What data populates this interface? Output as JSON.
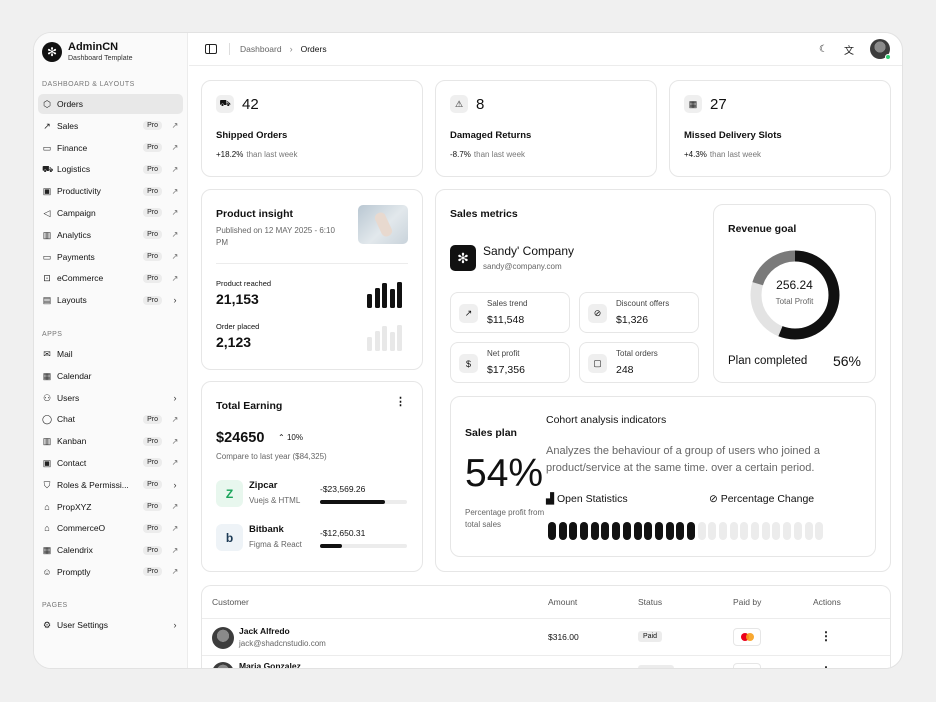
{
  "brand": {
    "name": "AdminCN",
    "subtitle": "Dashboard Template"
  },
  "sidebar": {
    "section1": "DASHBOARD & LAYOUTS",
    "items1": [
      {
        "label": "Orders",
        "icon": "box-icon",
        "glyph": "⬡",
        "pro": "",
        "trail": "",
        "active": true
      },
      {
        "label": "Sales",
        "icon": "trending-up-icon",
        "glyph": "↗",
        "pro": "Pro",
        "trail": "↗"
      },
      {
        "label": "Finance",
        "icon": "wallet-icon",
        "glyph": "▭",
        "pro": "Pro",
        "trail": "↗"
      },
      {
        "label": "Logistics",
        "icon": "truck-icon",
        "glyph": "⛟",
        "pro": "Pro",
        "trail": "↗"
      },
      {
        "label": "Productivity",
        "icon": "briefcase-icon",
        "glyph": "▣",
        "pro": "Pro",
        "trail": "↗"
      },
      {
        "label": "Campaign",
        "icon": "megaphone-icon",
        "glyph": "◁",
        "pro": "Pro",
        "trail": "↗"
      },
      {
        "label": "Analytics",
        "icon": "chart-icon",
        "glyph": "▥",
        "pro": "Pro",
        "trail": "↗"
      },
      {
        "label": "Payments",
        "icon": "credit-card-icon",
        "glyph": "▭",
        "pro": "Pro",
        "trail": "↗"
      },
      {
        "label": "eCommerce",
        "icon": "cart-icon",
        "glyph": "⊡",
        "pro": "Pro",
        "trail": "↗"
      },
      {
        "label": "Layouts",
        "icon": "layout-icon",
        "glyph": "▤",
        "pro": "Pro",
        "trail": "›"
      }
    ],
    "section2": "APPS",
    "items2": [
      {
        "label": "Mail",
        "icon": "mail-icon",
        "glyph": "✉",
        "pro": "",
        "trail": ""
      },
      {
        "label": "Calendar",
        "icon": "calendar-icon",
        "glyph": "▦",
        "pro": "",
        "trail": ""
      },
      {
        "label": "Users",
        "icon": "users-icon",
        "glyph": "⚇",
        "pro": "",
        "trail": "›"
      },
      {
        "label": "Chat",
        "icon": "chat-icon",
        "glyph": "◯",
        "pro": "Pro",
        "trail": "↗"
      },
      {
        "label": "Kanban",
        "icon": "kanban-icon",
        "glyph": "▥",
        "pro": "Pro",
        "trail": "↗"
      },
      {
        "label": "Contact",
        "icon": "contact-icon",
        "glyph": "▣",
        "pro": "Pro",
        "trail": "↗"
      },
      {
        "label": "Roles & Permissi...",
        "icon": "shield-icon",
        "glyph": "⛉",
        "pro": "Pro",
        "trail": "›"
      },
      {
        "label": "PropXYZ",
        "icon": "building-icon",
        "glyph": "⌂",
        "pro": "Pro",
        "trail": "↗"
      },
      {
        "label": "CommerceO",
        "icon": "store-icon",
        "glyph": "⌂",
        "pro": "Pro",
        "trail": "↗"
      },
      {
        "label": "Calendrix",
        "icon": "calendar-icon",
        "glyph": "▦",
        "pro": "Pro",
        "trail": "↗"
      },
      {
        "label": "Promptly",
        "icon": "bot-icon",
        "glyph": "☺",
        "pro": "Pro",
        "trail": "↗"
      }
    ],
    "section3": "PAGES",
    "items3": [
      {
        "label": "User Settings",
        "icon": "user-settings-icon",
        "glyph": "⚙",
        "pro": "",
        "trail": "›"
      }
    ]
  },
  "breadcrumb": {
    "parent": "Dashboard",
    "current": "Orders"
  },
  "stats": [
    {
      "icon": "truck-icon",
      "glyph": "⛟",
      "value": "42",
      "title": "Shipped Orders",
      "change": "+18.2%",
      "note": "than last week"
    },
    {
      "icon": "alert-icon",
      "glyph": "⚠",
      "value": "8",
      "title": "Damaged Returns",
      "change": "-8.7%",
      "note": "than last week"
    },
    {
      "icon": "calendar-icon",
      "glyph": "▦",
      "value": "27",
      "title": "Missed Delivery Slots",
      "change": "+4.3%",
      "note": "than last week"
    }
  ],
  "insight": {
    "title": "Product insight",
    "published": "Published on 12 MAY 2025 - 6:10 PM",
    "reached_label": "Product reached",
    "reached_value": "21,153",
    "placed_label": "Order placed",
    "placed_value": "2,123"
  },
  "earning": {
    "title": "Total Earning",
    "amount": "$24650",
    "change": "10%",
    "compare": "Compare to last year ($84,325)",
    "rows": [
      {
        "name": "Zipcar",
        "sub": "Vuejs & HTML",
        "amount": "-$23,569.26",
        "progress": 0.75
      },
      {
        "name": "Bitbank",
        "sub": "Figma & React",
        "amount": "-$12,650.31",
        "progress": 0.25
      }
    ]
  },
  "sales_metrics": {
    "title": "Sales metrics",
    "company": "Sandy' Company",
    "email": "sandy@company.com",
    "boxes": [
      {
        "icon": "trending-up-icon",
        "glyph": "↗",
        "label": "Sales trend",
        "value": "$11,548"
      },
      {
        "icon": "discount-icon",
        "glyph": "⊘",
        "label": "Discount offers",
        "value": "$1,326"
      },
      {
        "icon": "dollar-icon",
        "glyph": "$",
        "label": "Net profit",
        "value": "$17,356"
      },
      {
        "icon": "bag-icon",
        "glyph": "▢",
        "label": "Total orders",
        "value": "248"
      }
    ]
  },
  "revenue": {
    "title": "Revenue goal",
    "value": "256.24",
    "label": "Total Profit",
    "plan_label": "Plan completed",
    "plan_value": "56%",
    "progress": 0.56
  },
  "sales_plan": {
    "title": "Sales plan",
    "percent": "54%",
    "caption": "Percentage profit from total sales",
    "cohort_title": "Cohort analysis indicators",
    "cohort_desc": "Analyzes the behaviour of a group of users who joined a product/service at the same time. over a certain period.",
    "open_stats": "Open Statistics",
    "pct_change": "Percentage Change",
    "filled": 14,
    "total": 26
  },
  "table": {
    "headers": [
      "Customer",
      "Amount",
      "Status",
      "Paid by",
      "Actions"
    ],
    "rows": [
      {
        "name": "Jack Alfredo",
        "email": "jack@shadcnstudio.com",
        "amount": "$316.00",
        "status": "Paid"
      },
      {
        "name": "Maria Gonzalez",
        "email": "",
        "amount": "",
        "status": ""
      }
    ]
  },
  "colors": {
    "accent": "#111111",
    "online": "#2ecc71",
    "mastercard_red": "#eb001b",
    "mastercard_orange": "#f79e1b"
  }
}
